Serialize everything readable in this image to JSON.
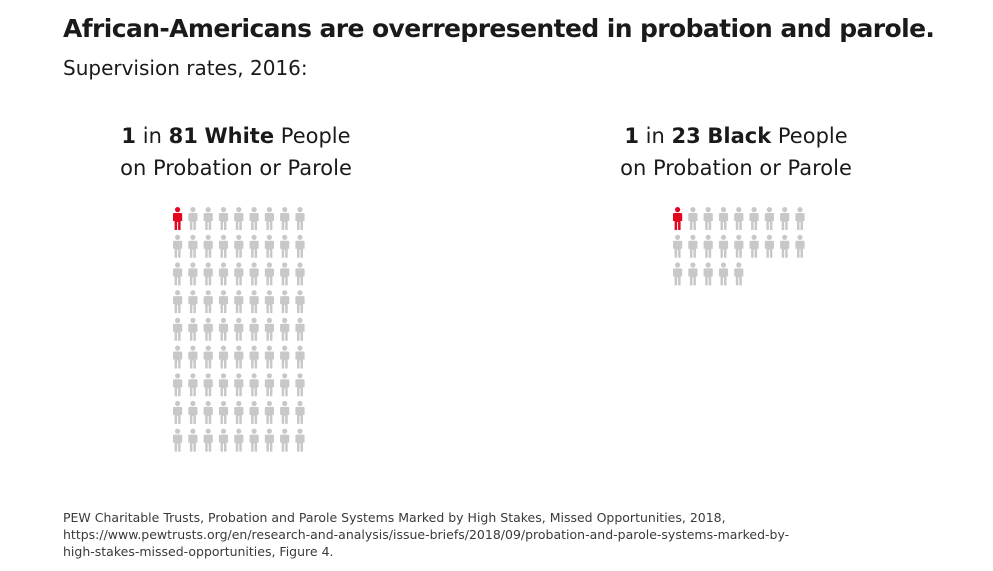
{
  "title": "African-Americans are overrepresented in probation and parole.",
  "subtitle": "Supervision rates, 2016:",
  "colors": {
    "highlight": "#e2061f",
    "other": "#c8c8c8"
  },
  "chart_data": {
    "type": "pictograph",
    "title": "African-Americans are overrepresented in probation and parole.",
    "subtitle": "Supervision rates, 2016:",
    "groups": [
      {
        "ratio_number": "1",
        "ratio_in": "in",
        "ratio_total": "81",
        "race": "White",
        "people_word": "People",
        "line2": "on Probation or Parole",
        "highlighted": 1,
        "total": 81
      },
      {
        "ratio_number": "1",
        "ratio_in": "in",
        "ratio_total": "23",
        "race": "Black",
        "people_word": "People",
        "line2": "on Probation or Parole",
        "highlighted": 1,
        "total": 23
      }
    ]
  },
  "source": {
    "line1": "PEW Charitable Trusts, Probation and Parole Systems Marked by High Stakes, Missed Opportunities, 2018,",
    "line2": "https://www.pewtrusts.org/en/research-and-analysis/issue-briefs/2018/09/probation-and-parole-systems-marked-by-",
    "line3": "high-stakes-missed-opportunities, Figure 4."
  }
}
